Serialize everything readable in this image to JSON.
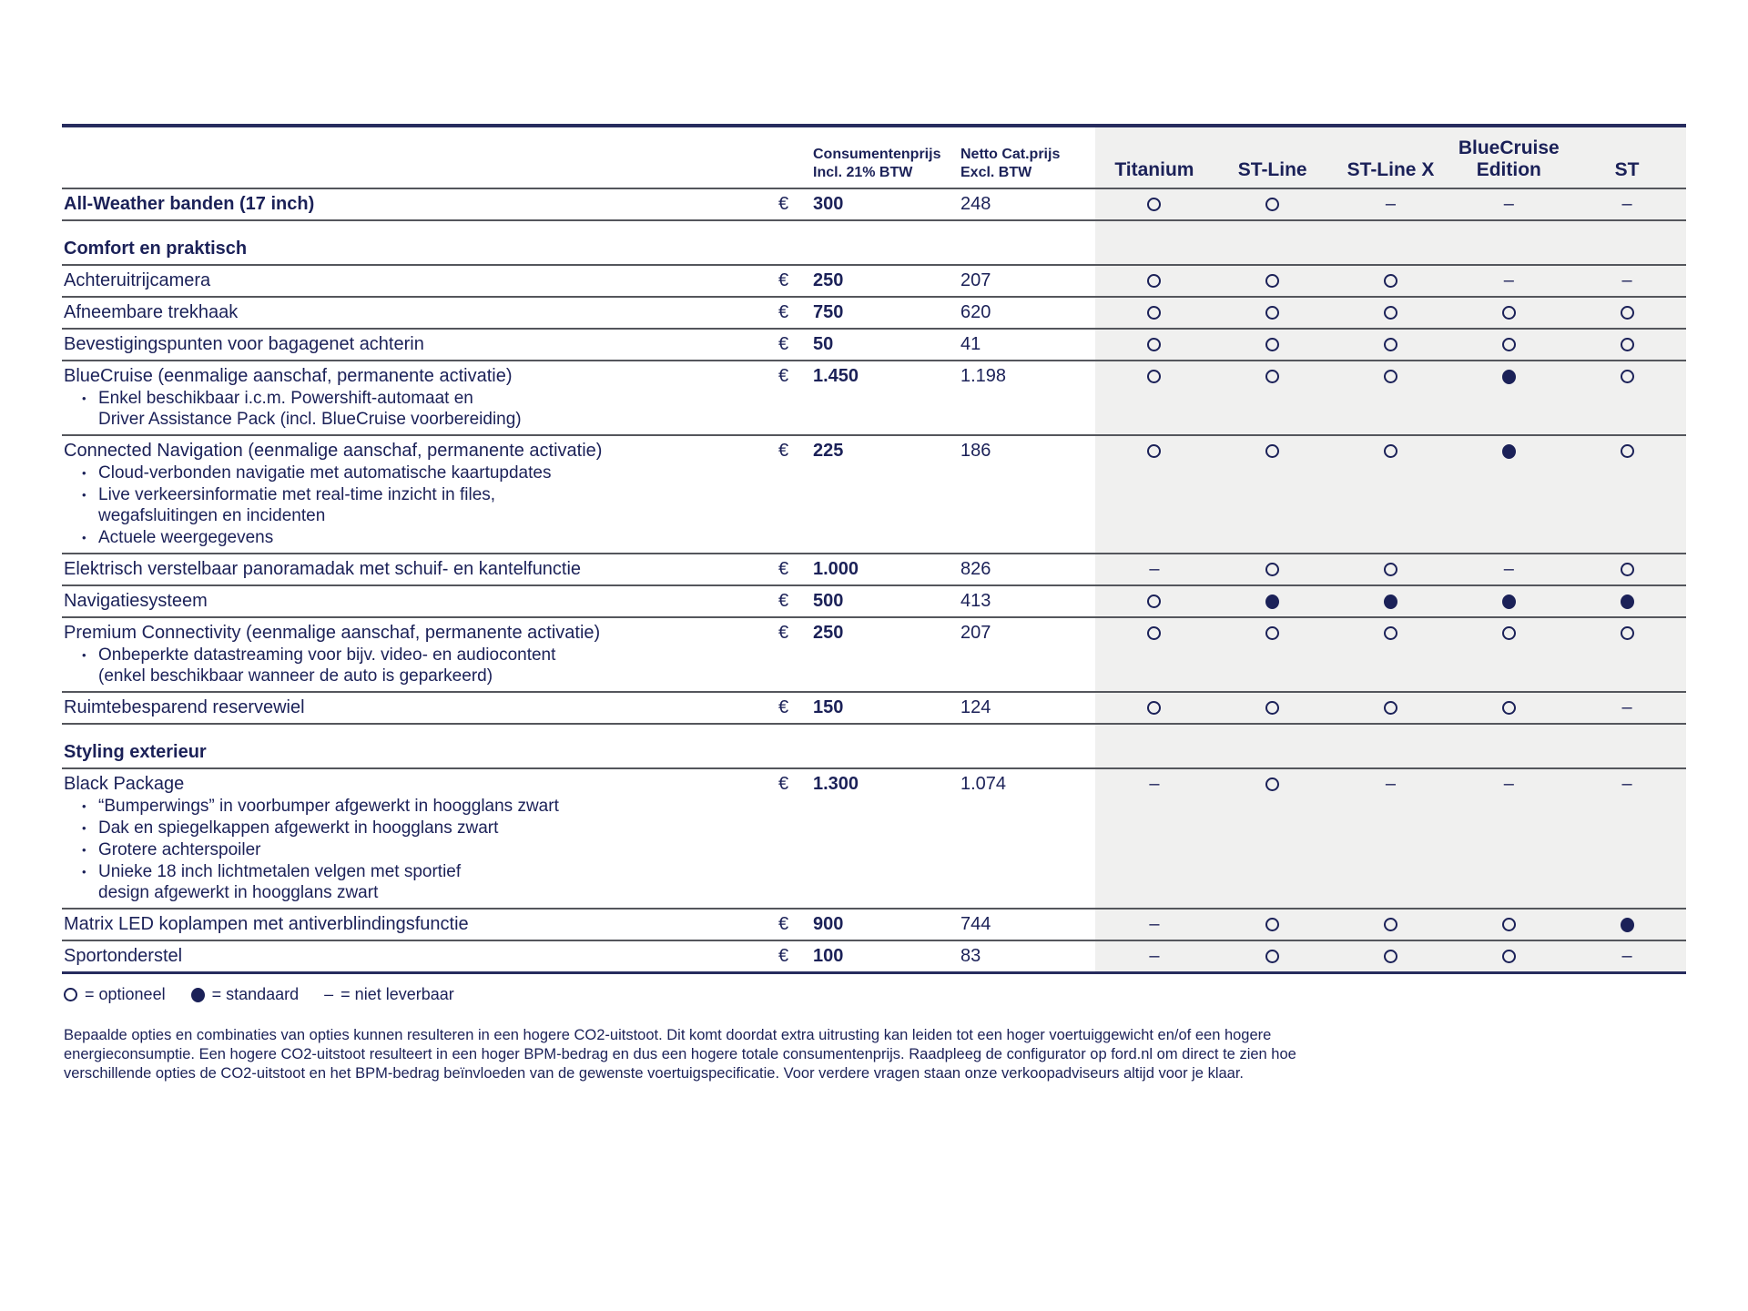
{
  "colors": {
    "navy": "#1b2158",
    "separator_gray": "#54565c",
    "band_gray": "#f0f0ef"
  },
  "symbols": {
    "euro": "€",
    "dash": "–",
    "bullet": "•"
  },
  "table": {
    "header": {
      "price_line1": "Consumentenprijs",
      "price_line2": "Incl. 21% BTW",
      "netto_line1": "Netto Cat.prijs",
      "netto_line2": "Excl. BTW",
      "trims": [
        "Titanium",
        "ST-Line",
        "ST-Line X",
        "BlueCruise Edition",
        "ST"
      ]
    },
    "rows": [
      {
        "type": "item",
        "bold": true,
        "label": "All-Weather banden (17 inch)",
        "price": "300",
        "netto": "248",
        "availability": [
          "optional",
          "optional",
          "na",
          "na",
          "na"
        ]
      },
      {
        "type": "section",
        "label": "Comfort en praktisch"
      },
      {
        "type": "item",
        "label": "Achteruitrijcamera",
        "price": "250",
        "netto": "207",
        "availability": [
          "optional",
          "optional",
          "optional",
          "na",
          "na"
        ]
      },
      {
        "type": "item",
        "label": "Afneembare trekhaak",
        "price": "750",
        "netto": "620",
        "availability": [
          "optional",
          "optional",
          "optional",
          "optional",
          "optional"
        ]
      },
      {
        "type": "item",
        "label": "Bevestigingspunten voor bagagenet achterin",
        "price": "50",
        "netto": "41",
        "availability": [
          "optional",
          "optional",
          "optional",
          "optional",
          "optional"
        ]
      },
      {
        "type": "item",
        "label": "BlueCruise (eenmalige aanschaf, permanente activatie)",
        "bullets": [
          [
            "Enkel beschikbaar i.c.m. Powershift-automaat en",
            "Driver Assistance Pack (incl. BlueCruise voorbereiding)"
          ]
        ],
        "price": "1.450",
        "netto": "1.198",
        "availability": [
          "optional",
          "optional",
          "optional",
          "standard",
          "optional"
        ]
      },
      {
        "type": "item",
        "label": "Connected Navigation (eenmalige aanschaf, permanente activatie)",
        "bullets": [
          [
            "Cloud-verbonden navigatie met automatische kaartupdates"
          ],
          [
            "Live verkeersinformatie met real-time inzicht in files,",
            "wegafsluitingen en incidenten"
          ],
          [
            "Actuele weergegevens"
          ]
        ],
        "price": "225",
        "netto": "186",
        "availability": [
          "optional",
          "optional",
          "optional",
          "standard",
          "optional"
        ]
      },
      {
        "type": "item",
        "label": "Elektrisch verstelbaar panoramadak met schuif- en kantelfunctie",
        "price": "1.000",
        "netto": "826",
        "availability": [
          "na",
          "optional",
          "optional",
          "na",
          "optional"
        ]
      },
      {
        "type": "item",
        "label": "Navigatiesysteem",
        "price": "500",
        "netto": "413",
        "availability": [
          "optional",
          "standard",
          "standard",
          "standard",
          "standard"
        ]
      },
      {
        "type": "item",
        "label": "Premium Connectivity (eenmalige aanschaf, permanente activatie)",
        "bullets": [
          [
            "Onbeperkte datastreaming voor bijv. video- en audiocontent",
            "(enkel beschikbaar wanneer de auto is geparkeerd)"
          ]
        ],
        "price": "250",
        "netto": "207",
        "availability": [
          "optional",
          "optional",
          "optional",
          "optional",
          "optional"
        ]
      },
      {
        "type": "item",
        "label": "Ruimtebesparend reservewiel",
        "price": "150",
        "netto": "124",
        "availability": [
          "optional",
          "optional",
          "optional",
          "optional",
          "na"
        ]
      },
      {
        "type": "section",
        "label": "Styling exterieur"
      },
      {
        "type": "item",
        "label": "Black Package",
        "bullets": [
          [
            "“Bumperwings” in voorbumper afgewerkt in hoogglans zwart"
          ],
          [
            "Dak en spiegelkappen afgewerkt in hoogglans zwart"
          ],
          [
            "Grotere achterspoiler"
          ],
          [
            "Unieke 18 inch lichtmetalen velgen met sportief",
            "design afgewerkt in hoogglans zwart"
          ]
        ],
        "price": "1.300",
        "netto": "1.074",
        "availability": [
          "na",
          "optional",
          "na",
          "na",
          "na"
        ]
      },
      {
        "type": "item",
        "label": "Matrix LED koplampen met antiverblindingsfunctie",
        "price": "900",
        "netto": "744",
        "availability": [
          "na",
          "optional",
          "optional",
          "optional",
          "standard"
        ]
      },
      {
        "type": "item",
        "label": "Sportonderstel",
        "price": "100",
        "netto": "83",
        "availability": [
          "na",
          "optional",
          "optional",
          "optional",
          "na"
        ]
      }
    ],
    "legend": {
      "optional_label": "= optioneel",
      "standard_label": "= standaard",
      "na_label": "= niet leverbaar"
    },
    "footer_lines": [
      "Bepaalde opties en combinaties van opties kunnen resulteren in een hogere CO2-uitstoot. Dit komt doordat extra uitrusting kan leiden tot een hoger voertuiggewicht en/of een hogere",
      "energieconsumptie. Een hogere CO2-uitstoot resulteert in een hoger BPM-bedrag en dus een hogere totale consumentenprijs. Raadpleeg de configurator op ford.nl om direct te zien hoe",
      "verschillende opties de CO2-uitstoot en het BPM-bedrag beïnvloeden van de gewenste voertuigspecificatie. Voor verdere vragen staan onze verkoopadviseurs altijd voor je klaar."
    ]
  }
}
